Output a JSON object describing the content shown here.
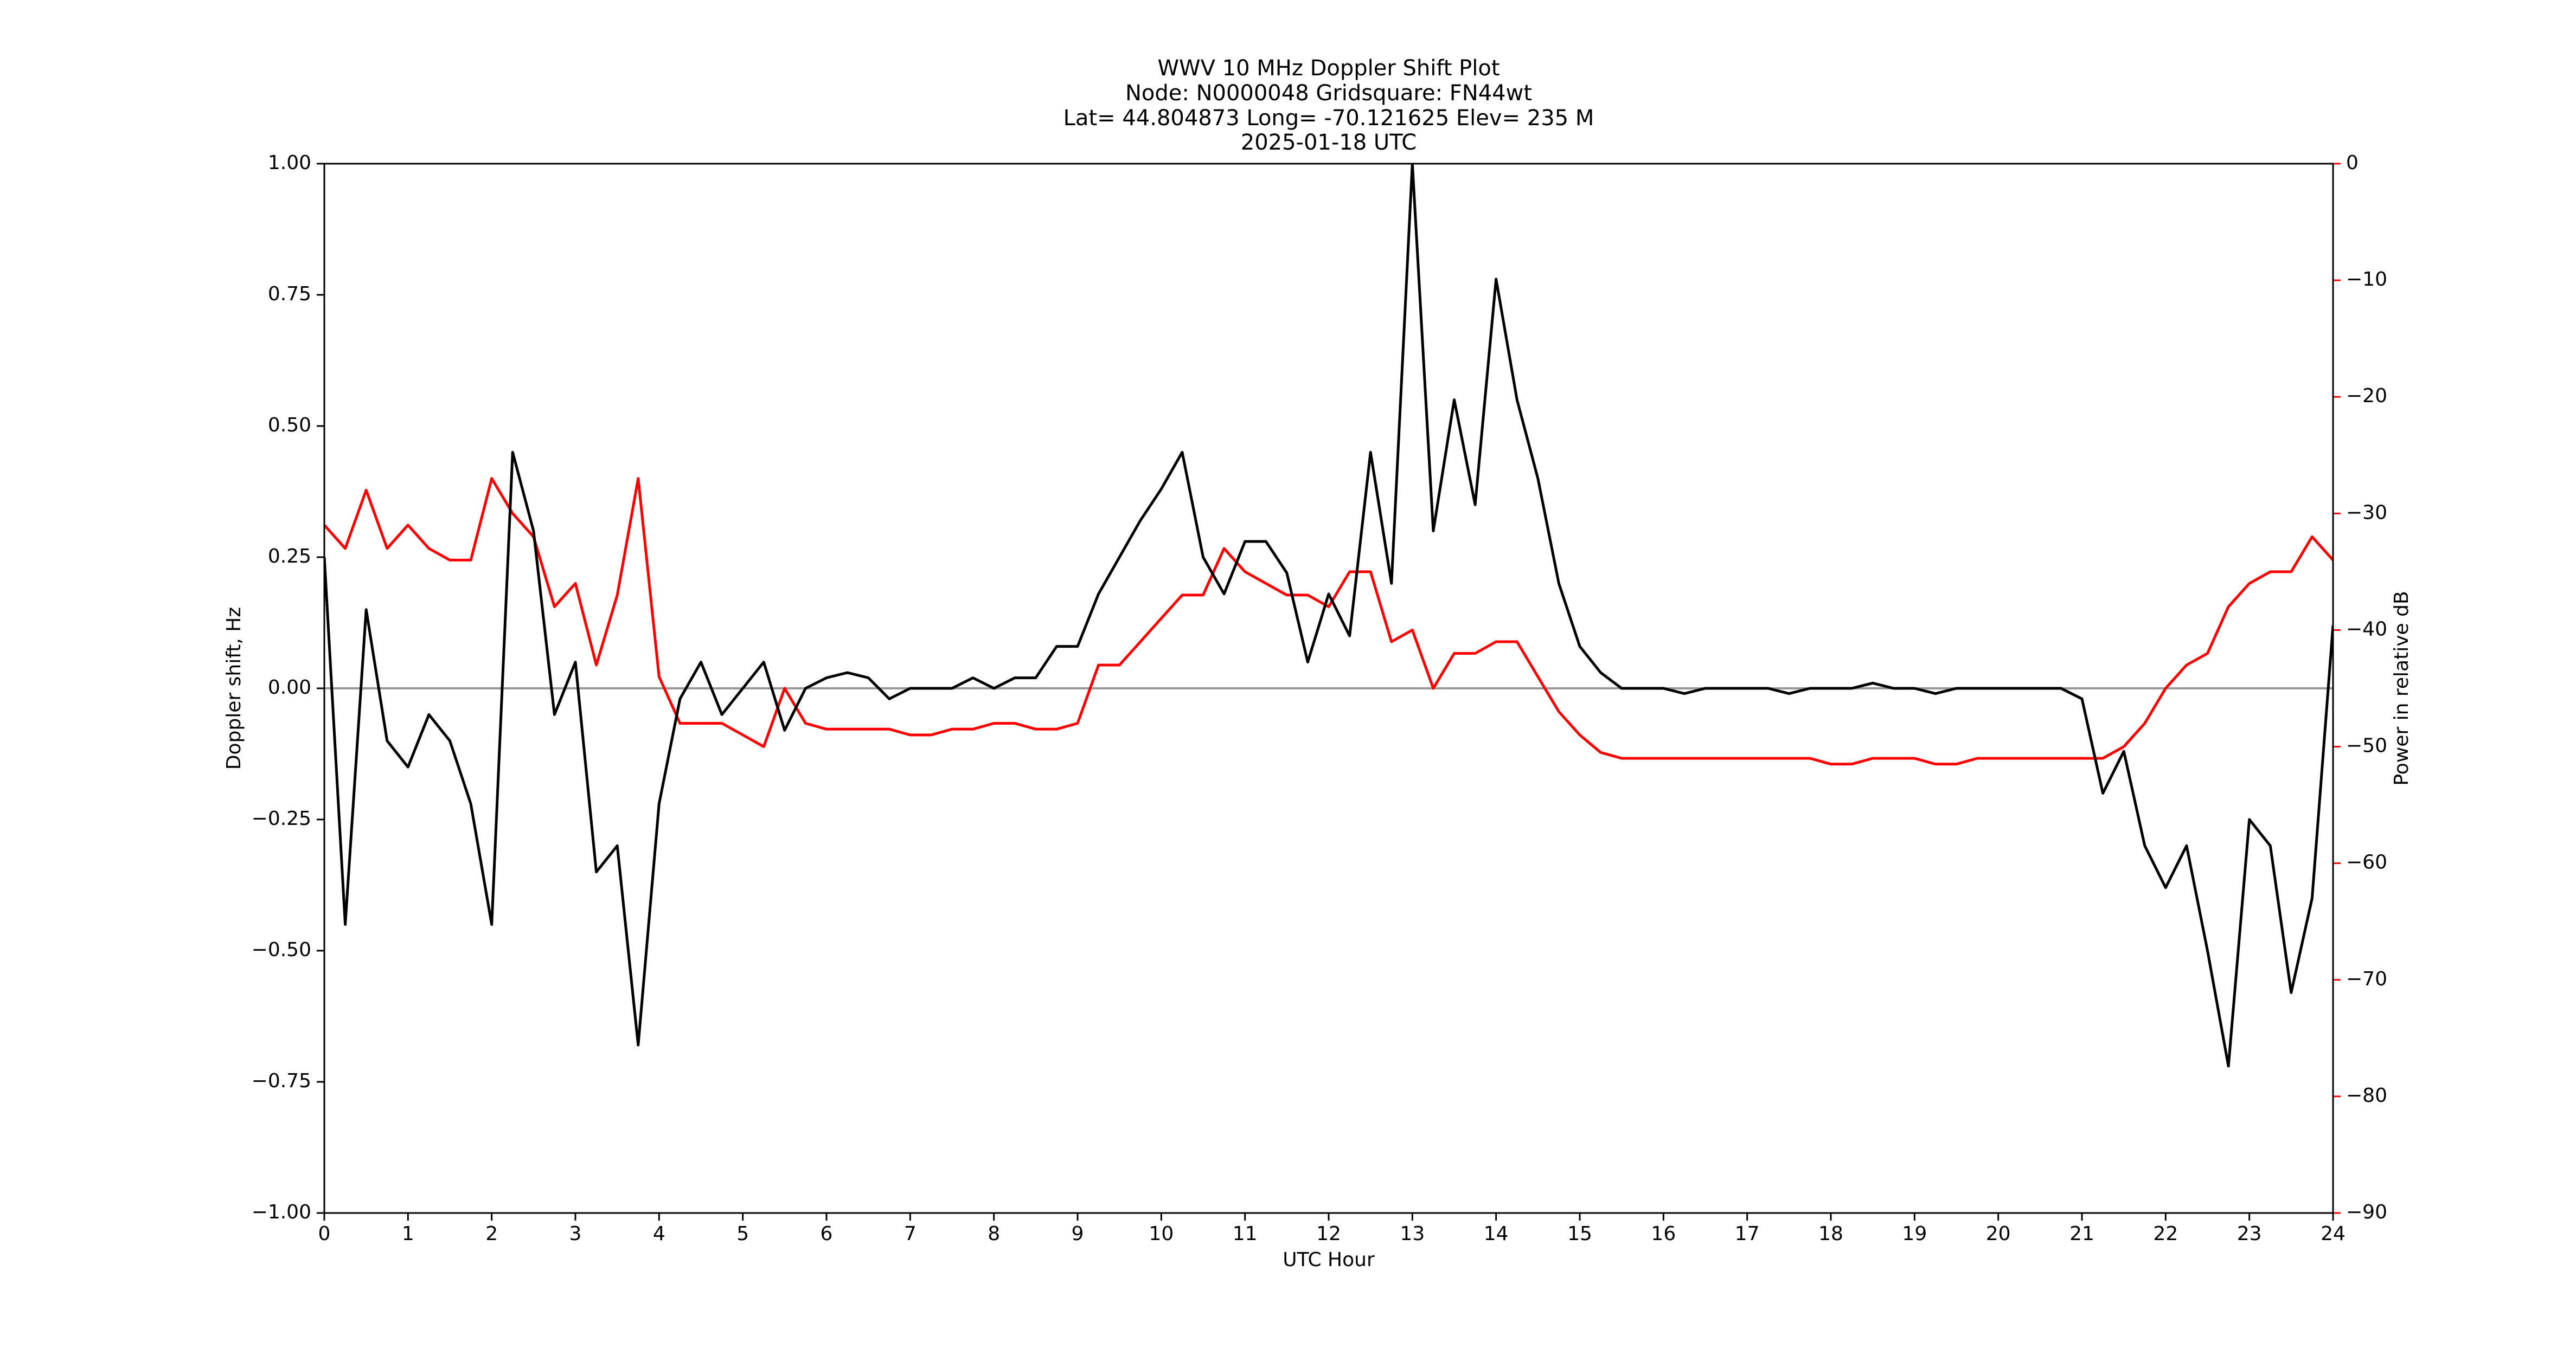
{
  "chart_data": {
    "type": "line",
    "title": [
      "WWV 10 MHz Doppler Shift Plot",
      "Node:  N0000048     Gridsquare:  FN44wt",
      "Lat= 44.804873    Long= -70.121625    Elev= 235 M",
      "2025-01-18  UTC"
    ],
    "xlabel": "UTC Hour",
    "ylabel": "Doppler shift, Hz",
    "y2label": "Power in relative dB",
    "x": [
      0,
      0.25,
      0.5,
      0.75,
      1,
      1.25,
      1.5,
      1.75,
      2,
      2.25,
      2.5,
      2.75,
      3,
      3.25,
      3.5,
      3.75,
      4,
      4.25,
      4.5,
      4.75,
      5,
      5.25,
      5.5,
      5.75,
      6,
      6.25,
      6.5,
      6.75,
      7,
      7.25,
      7.5,
      7.75,
      8,
      8.25,
      8.5,
      8.75,
      9,
      9.25,
      9.5,
      9.75,
      10,
      10.25,
      10.5,
      10.75,
      11,
      11.25,
      11.5,
      11.75,
      12,
      12.25,
      12.5,
      12.75,
      13,
      13.25,
      13.5,
      13.75,
      14,
      14.25,
      14.5,
      14.75,
      15,
      15.25,
      15.5,
      15.75,
      16,
      16.25,
      16.5,
      16.75,
      17,
      17.25,
      17.5,
      17.75,
      18,
      18.25,
      18.5,
      18.75,
      19,
      19.25,
      19.5,
      19.75,
      20,
      20.25,
      20.5,
      20.75,
      21,
      21.25,
      21.5,
      21.75,
      22,
      22.25,
      22.5,
      22.75,
      23,
      23.25,
      23.5,
      23.75,
      24
    ],
    "series": [
      {
        "name": "Doppler shift",
        "color": "#000000",
        "axis": "y",
        "values": [
          0.25,
          -0.45,
          0.15,
          -0.1,
          -0.15,
          -0.05,
          -0.1,
          -0.22,
          -0.45,
          0.45,
          0.3,
          -0.05,
          0.05,
          -0.35,
          -0.3,
          -0.68,
          -0.22,
          -0.02,
          0.05,
          -0.05,
          0,
          0.05,
          -0.08,
          0,
          0.02,
          0.03,
          0.02,
          -0.02,
          0,
          0,
          0,
          0.02,
          0,
          0.02,
          0.02,
          0.08,
          0.08,
          0.18,
          0.25,
          0.32,
          0.38,
          0.45,
          0.25,
          0.18,
          0.28,
          0.28,
          0.22,
          0.05,
          0.18,
          0.1,
          0.45,
          0.2,
          1,
          0.3,
          0.55,
          0.35,
          0.78,
          0.55,
          0.4,
          0.2,
          0.08,
          0.03,
          0,
          0,
          0,
          -0.01,
          0,
          0,
          0,
          0,
          -0.01,
          0,
          0,
          0,
          0.01,
          0,
          0,
          -0.01,
          0,
          0,
          0,
          0,
          0,
          0,
          -0.02,
          -0.2,
          -0.12,
          -0.3,
          -0.38,
          -0.3,
          -0.5,
          -0.72,
          -0.25,
          -0.3,
          -0.58,
          -0.4,
          0.12
        ]
      },
      {
        "name": "Power",
        "color": "#ff0000",
        "axis": "y2",
        "values": [
          -31,
          -33,
          -28,
          -33,
          -31,
          -33,
          -34,
          -34,
          -27,
          -30,
          -32,
          -38,
          -36,
          -43,
          -37,
          -27,
          -44,
          -48,
          -48,
          -48,
          -49,
          -50,
          -45,
          -48,
          -48.5,
          -48.5,
          -48.5,
          -48.5,
          -49,
          -49,
          -48.5,
          -48.5,
          -48,
          -48,
          -48.5,
          -48.5,
          -48,
          -43,
          -43,
          -41,
          -39,
          -37,
          -37,
          -33,
          -35,
          -36,
          -37,
          -37,
          -38,
          -35,
          -35,
          -41,
          -40,
          -45,
          -42,
          -42,
          -41,
          -41,
          -44,
          -47,
          -49,
          -50.5,
          -51,
          -51,
          -51,
          -51,
          -51,
          -51,
          -51,
          -51,
          -51,
          -51,
          -51.5,
          -51.5,
          -51,
          -51,
          -51,
          -51.5,
          -51.5,
          -51,
          -51,
          -51,
          -51,
          -51,
          -51,
          -51,
          -50,
          -48,
          -45,
          -43,
          -42,
          -38,
          -36,
          -35,
          -35,
          -32,
          -34
        ]
      }
    ],
    "xlim": [
      0,
      24
    ],
    "xticks": [
      0,
      1,
      2,
      3,
      4,
      5,
      6,
      7,
      8,
      9,
      10,
      11,
      12,
      13,
      14,
      15,
      16,
      17,
      18,
      19,
      20,
      21,
      22,
      23,
      24
    ],
    "ylim": [
      -1,
      1
    ],
    "yticks": [
      {
        "value": -1,
        "label": "−1.00"
      },
      {
        "value": -0.75,
        "label": "−0.75"
      },
      {
        "value": -0.5,
        "label": "−0.50"
      },
      {
        "value": -0.25,
        "label": "−0.25"
      },
      {
        "value": 0,
        "label": "0.00"
      },
      {
        "value": 0.25,
        "label": "0.25"
      },
      {
        "value": 0.5,
        "label": "0.50"
      },
      {
        "value": 0.75,
        "label": "0.75"
      },
      {
        "value": 1,
        "label": "1.00"
      }
    ],
    "y2lim": [
      -90,
      0
    ],
    "y2ticks": [
      {
        "value": -90,
        "label": "−90"
      },
      {
        "value": -80,
        "label": "−80"
      },
      {
        "value": -70,
        "label": "−70"
      },
      {
        "value": -60,
        "label": "−60"
      },
      {
        "value": -50,
        "label": "−50"
      },
      {
        "value": -40,
        "label": "−40"
      },
      {
        "value": -30,
        "label": "−30"
      },
      {
        "value": -20,
        "label": "−20"
      },
      {
        "value": -10,
        "label": "−10"
      },
      {
        "value": 0,
        "label": "0"
      }
    ],
    "y2color": "#ff0000",
    "hline": 0,
    "hline_color": "#999999"
  }
}
